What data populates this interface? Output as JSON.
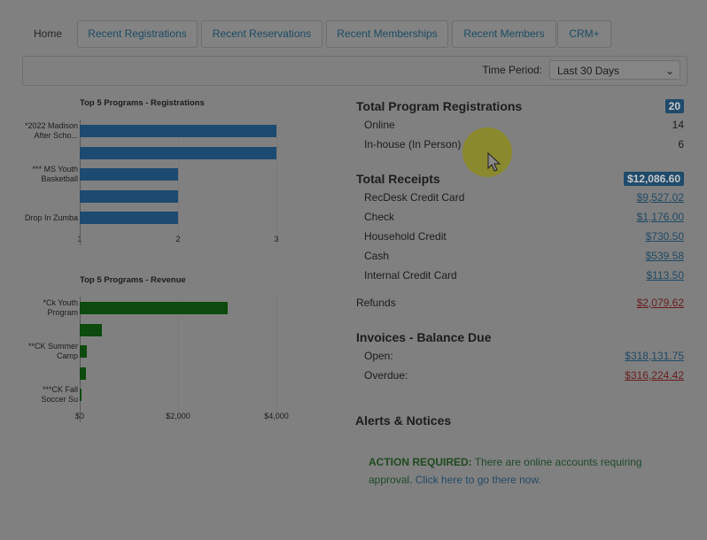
{
  "tabs": [
    "Home",
    "Recent Registrations",
    "Recent Reservations",
    "Recent Memberships",
    "Recent Members",
    "CRM+"
  ],
  "toolbar": {
    "label": "Time Period:",
    "selected": "Last 30 Days"
  },
  "charts": [
    {
      "type": "hbar",
      "title": "Top 5 Programs - Registrations",
      "color": "#1d4a70",
      "categories": [
        "*2022 Madison After Scho...",
        null,
        "*** MS Youth Basketball",
        null,
        "Drop In Zumba"
      ],
      "values": [
        3,
        3,
        2,
        2,
        2
      ],
      "xlim": [
        1,
        3
      ],
      "xticks": [
        1,
        2,
        3
      ],
      "grid": true
    },
    {
      "type": "hbar",
      "title": "Top 5 Programs - Revenue",
      "color": "#0d4a0d",
      "categories": [
        "*Ck Youth Program",
        null,
        "**CK Summer Camp",
        null,
        "***CK Fall Soccer Su"
      ],
      "values": [
        3000,
        450,
        144,
        126,
        36
      ],
      "xlim": [
        0,
        4000
      ],
      "xticks": [
        {
          "value": 0,
          "label": "$0"
        },
        {
          "value": 2000,
          "label": "$2,000"
        },
        {
          "value": 4000,
          "label": "$4,000"
        }
      ],
      "grid": true
    }
  ],
  "summary": [
    {
      "title": "Total Program Registrations",
      "badge": "20",
      "rows": [
        {
          "label": "Online",
          "value": "14"
        },
        {
          "label": "In-house (In Person)",
          "value": "6"
        }
      ]
    },
    {
      "title": "Total Receipts",
      "badge": "$12,086.60",
      "rows": [
        {
          "label": "RecDesk Credit Card",
          "value": "$9,527.02"
        },
        {
          "label": "Check",
          "value": "$1,176.00"
        },
        {
          "label": "Household Credit",
          "value": "$730.50"
        },
        {
          "label": "Cash",
          "value": "$539.58"
        },
        {
          "label": "Internal Credit Card",
          "value": "$113.50"
        }
      ]
    }
  ],
  "refunds": {
    "label": "Refunds",
    "value": "$2,079.62"
  },
  "invoices": {
    "title": "Invoices - Balance Due",
    "rows": [
      {
        "label": "Open:",
        "value": "$318,131.75"
      },
      {
        "label": "Overdue:",
        "value": "$316,224.42"
      }
    ]
  },
  "alerts": {
    "title": "Alerts & Notices",
    "strong": "ACTION REQUIRED:",
    "text": "There are online accounts requiring approval.",
    "link": "Click here to go there now."
  }
}
